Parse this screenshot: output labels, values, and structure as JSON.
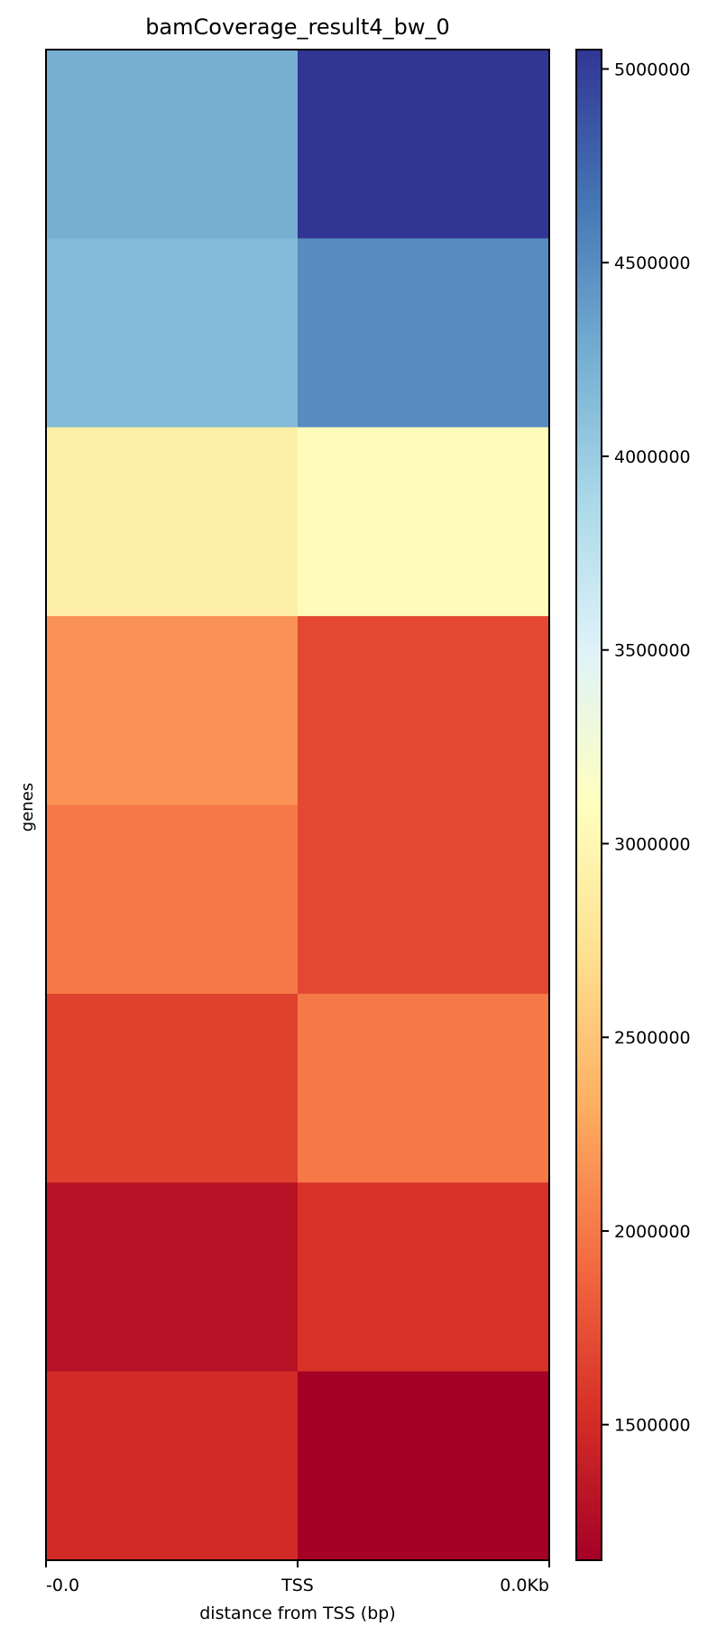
{
  "chart_data": {
    "type": "heatmap",
    "title": "bamCoverage_result4_bw_0",
    "xlabel": "distance from TSS (bp)",
    "ylabel": "genes",
    "x_tick_labels": [
      "-0.0",
      "TSS",
      "0.0Kb"
    ],
    "colormap": "RdYlBu",
    "colorbar": {
      "min": 1150000,
      "max": 5050000,
      "ticks": [
        1500000,
        2000000,
        2500000,
        3000000,
        3500000,
        4000000,
        4500000,
        5000000
      ],
      "tick_labels": [
        "1500000",
        "2000000",
        "2500000",
        "3000000",
        "3500000",
        "4000000",
        "4500000",
        "5000000"
      ]
    },
    "rows": 8,
    "cols": 2,
    "values": [
      [
        4250000,
        5050000
      ],
      [
        4150000,
        4500000
      ],
      [
        2900000,
        3050000
      ],
      [
        2150000,
        1700000
      ],
      [
        2000000,
        1700000
      ],
      [
        1650000,
        2000000
      ],
      [
        1300000,
        1550000
      ],
      [
        1500000,
        1150000
      ]
    ]
  }
}
